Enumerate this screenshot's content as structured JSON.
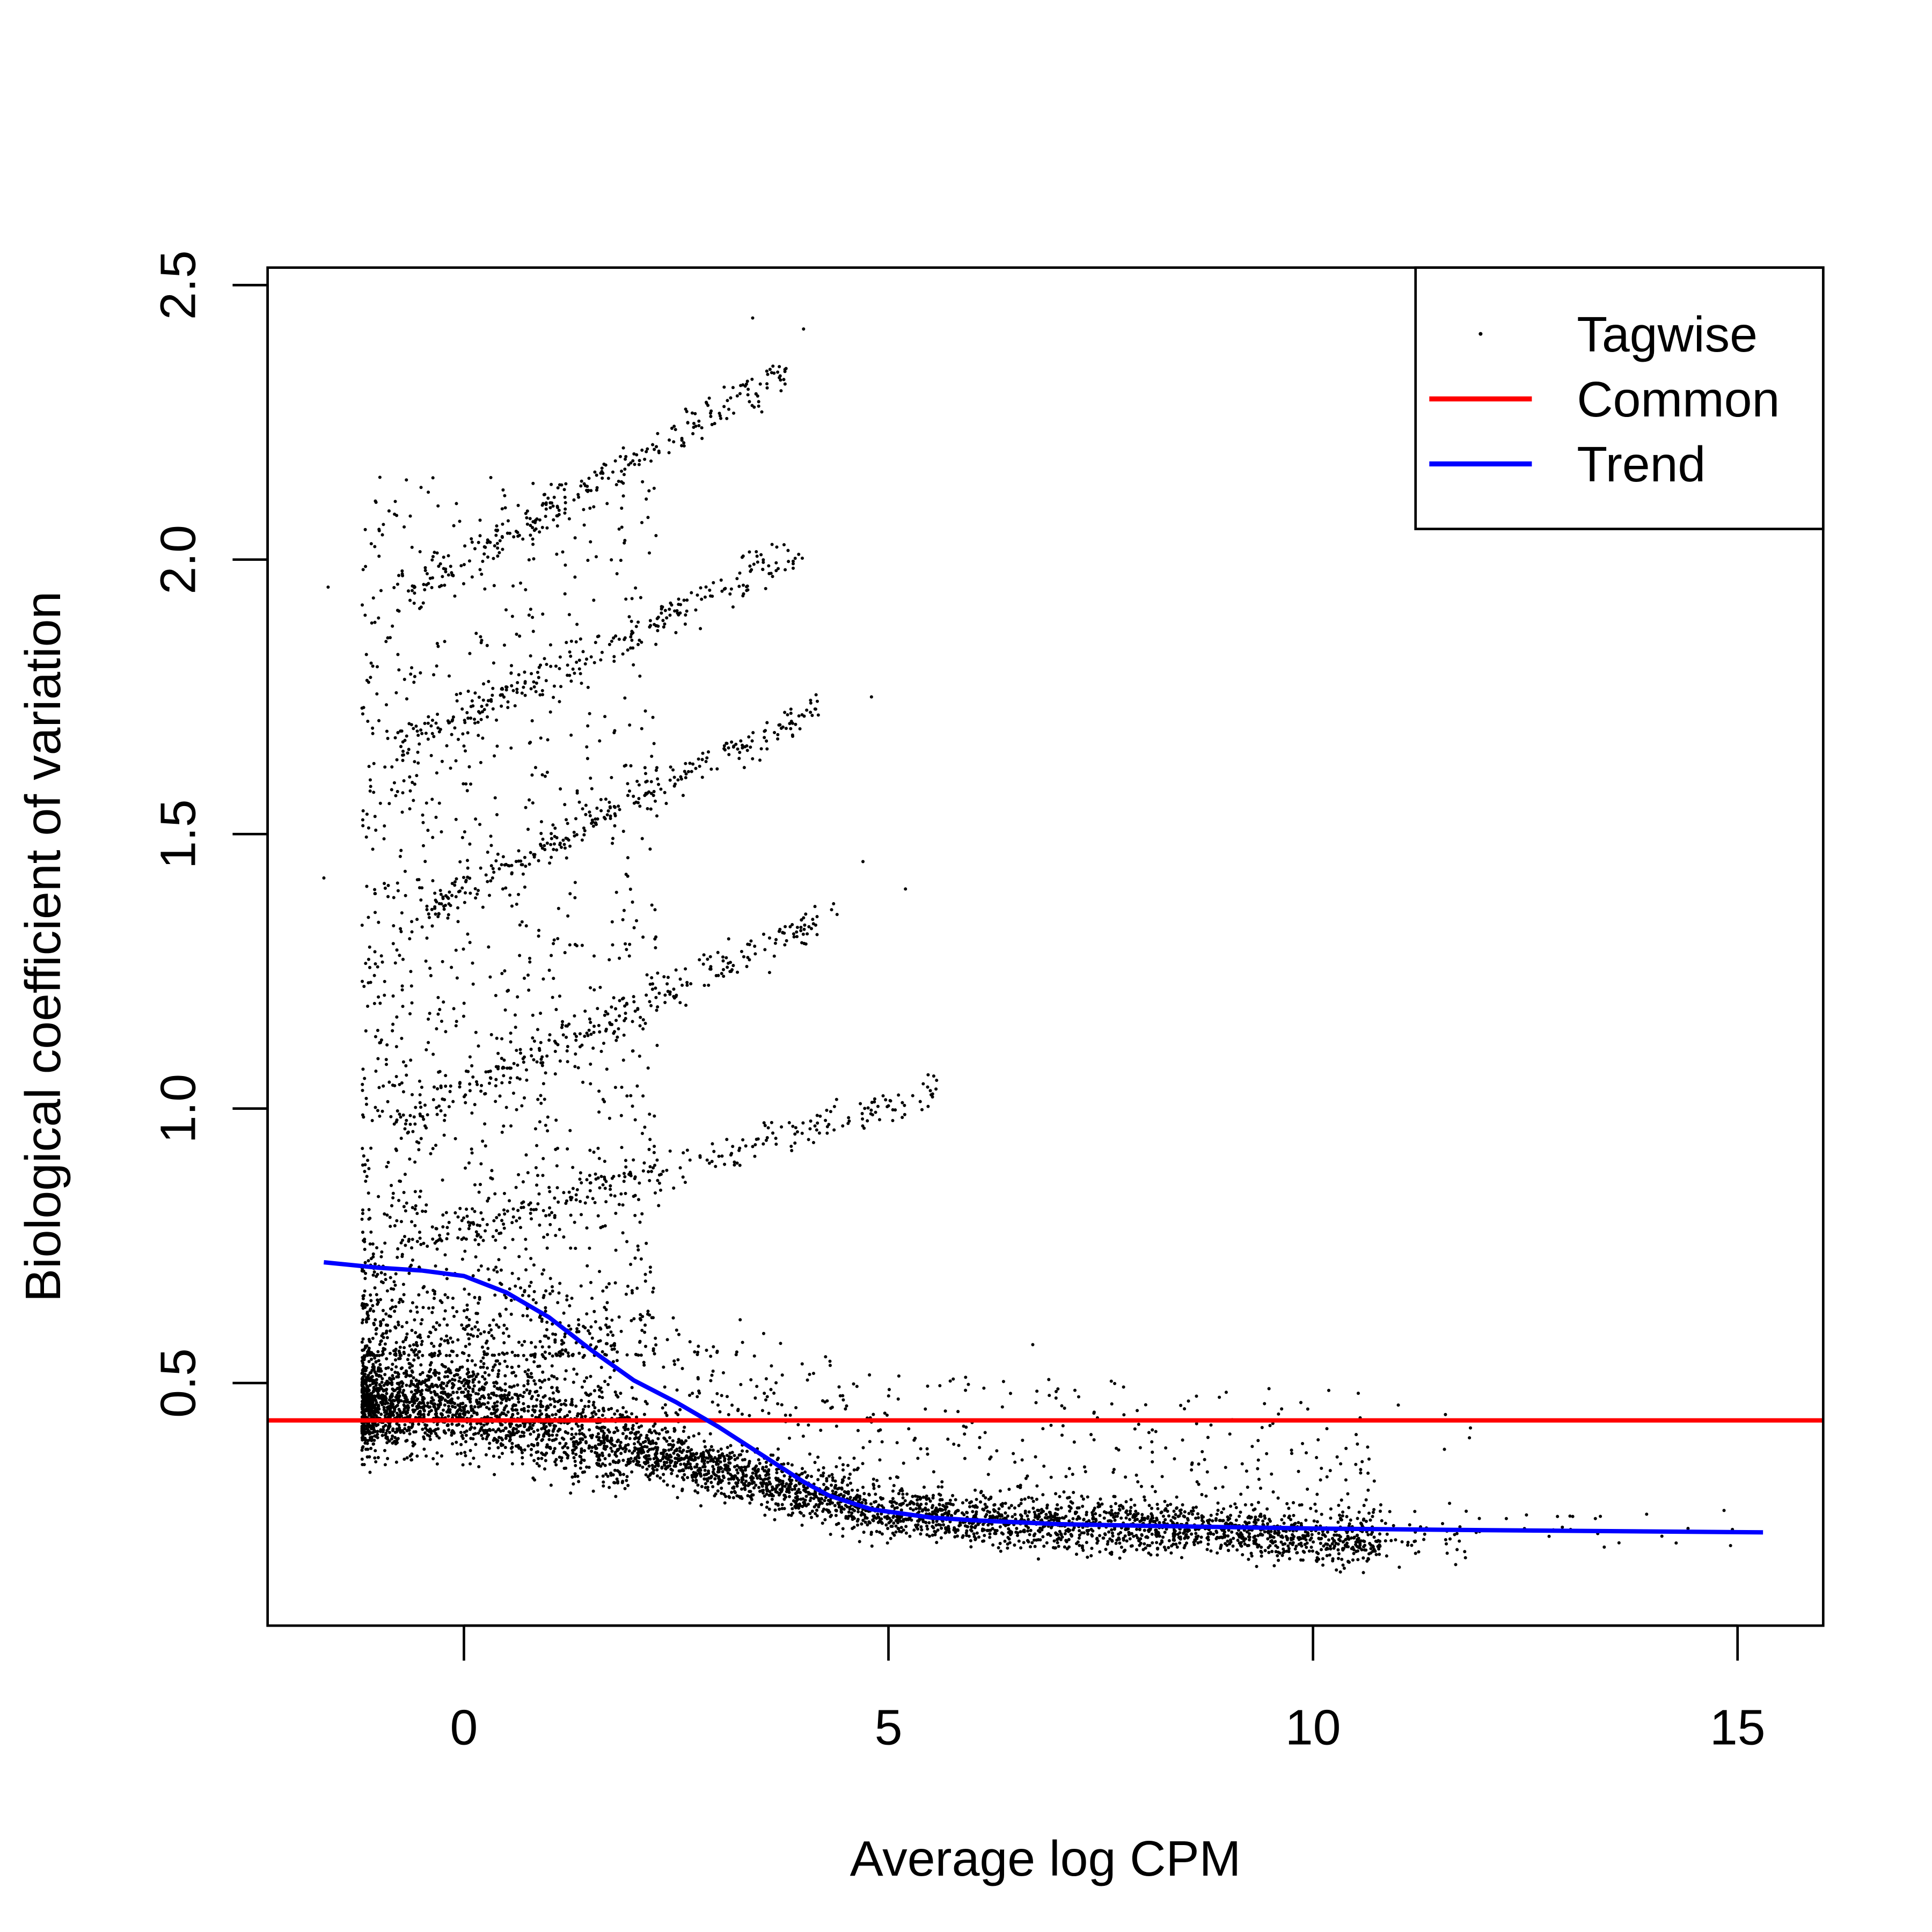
{
  "chart_data": {
    "type": "scatter",
    "title": "",
    "xlabel": "Average log CPM",
    "ylabel": "Biological coefficient of variation",
    "xlim": [
      -2.3,
      16.0
    ],
    "ylim": [
      0.06,
      2.53
    ],
    "xticks": [
      0,
      5,
      10,
      15
    ],
    "xtick_labels": [
      "0",
      "5",
      "10",
      "15"
    ],
    "yticks": [
      0.5,
      1.0,
      1.5,
      2.0,
      2.5
    ],
    "ytick_labels": [
      "0.5",
      "1.0",
      "1.5",
      "2.0",
      "2.5"
    ],
    "grid": false,
    "legend": {
      "position": "top-right",
      "entries": [
        {
          "label": "Tagwise",
          "type": "point",
          "color": "#000000"
        },
        {
          "label": "Common",
          "type": "line",
          "color": "#ff0000"
        },
        {
          "label": "Trend",
          "type": "line",
          "color": "#0000ff"
        }
      ]
    },
    "series": [
      {
        "name": "Common",
        "type": "hline",
        "color": "#ff0000",
        "y": 0.432
      },
      {
        "name": "Trend",
        "type": "line",
        "color": "#0000ff",
        "x": [
          -1.65,
          -1.0,
          -0.5,
          0.0,
          0.5,
          1.0,
          1.5,
          2.0,
          2.5,
          3.0,
          3.5,
          4.0,
          4.3,
          4.8,
          5.5,
          6.0,
          7.0,
          8.0,
          10.0,
          12.0,
          15.3
        ],
        "y": [
          0.72,
          0.71,
          0.705,
          0.695,
          0.665,
          0.62,
          0.56,
          0.505,
          0.465,
          0.42,
          0.37,
          0.32,
          0.295,
          0.27,
          0.255,
          0.25,
          0.243,
          0.24,
          0.235,
          0.232,
          0.228
        ]
      },
      {
        "name": "Tagwise",
        "type": "scatter",
        "color": "#000000",
        "approx_x_range": [
          -1.7,
          15.3
        ],
        "approx_y_range": [
          0.15,
          2.45
        ],
        "outliers": [
          {
            "x": -1.6,
            "y": 1.95
          },
          {
            "x": -1.65,
            "y": 1.42
          },
          {
            "x": 3.4,
            "y": 2.44
          },
          {
            "x": 4.0,
            "y": 2.42
          },
          {
            "x": 4.8,
            "y": 1.75
          },
          {
            "x": 5.2,
            "y": 1.4
          },
          {
            "x": 4.7,
            "y": 1.45
          },
          {
            "x": 6.7,
            "y": 0.57
          },
          {
            "x": 14.4,
            "y": 0.23
          }
        ]
      }
    ]
  }
}
